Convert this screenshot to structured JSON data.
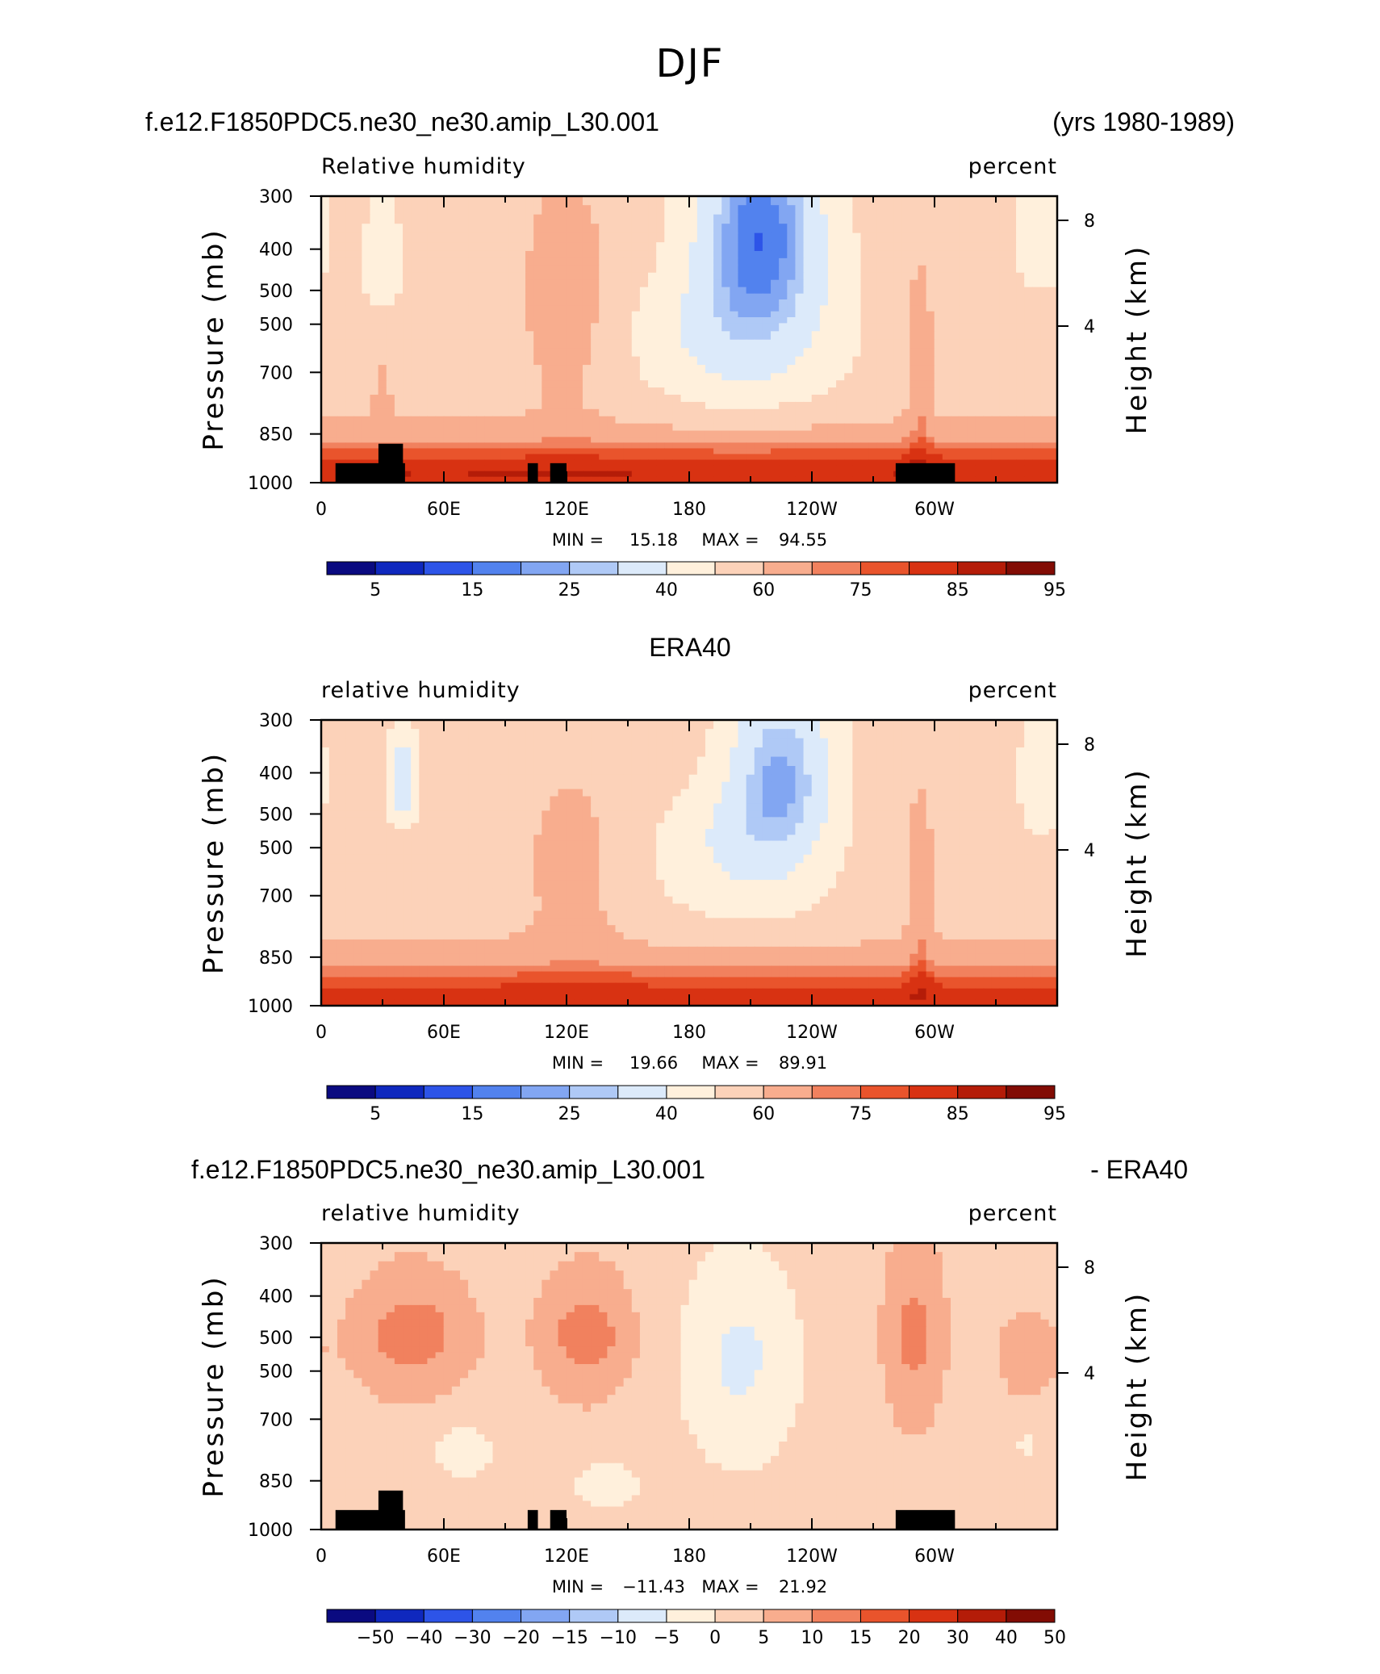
{
  "figure_title": "DJF",
  "colorbar_colors": [
    "#0a0a80",
    "#0f28be",
    "#2d54e8",
    "#5282ee",
    "#82a6f2",
    "#afc9f6",
    "#dceafa",
    "#fff0dc",
    "#fcd2b9",
    "#f8ad8e",
    "#f1815e",
    "#e9542c",
    "#d83212",
    "#b41c08",
    "#820c04"
  ],
  "land_color": "#000000",
  "chart_data": [
    {
      "type": "heatmap",
      "panel": "model",
      "title_left": "f.e12.F1850PDC5.ne30_ne30.amip_L30.001",
      "title_right": "(yrs 1980-1989)",
      "field_label": "Relative humidity",
      "units": "percent",
      "ylabel_left": "Pressure (mb)",
      "ylabel_right": "Height (km)",
      "x_ticks": [
        "0",
        "60E",
        "120E",
        "180",
        "120W",
        "60W"
      ],
      "x_tick_lons": [
        0,
        60,
        120,
        180,
        240,
        300
      ],
      "y_ticks": [
        "300",
        "400",
        "500",
        "500",
        "700",
        "850",
        "1000"
      ],
      "y_ticks_right": [
        "8",
        "4"
      ],
      "colorbar_labels": [
        "5",
        "15",
        "25",
        "40",
        "60",
        "75",
        "85",
        "95"
      ],
      "colorbar_levels": [
        5,
        10,
        15,
        20,
        25,
        30,
        40,
        50,
        60,
        70,
        75,
        80,
        85,
        90,
        95
      ],
      "stats": {
        "min_label": "MIN =",
        "min": "15.18",
        "max_label": "MAX =",
        "max": "94.55"
      }
    },
    {
      "type": "heatmap",
      "panel": "obs",
      "title_center": "ERA40",
      "field_label": "relative humidity",
      "units": "percent",
      "ylabel_left": "Pressure (mb)",
      "ylabel_right": "Height (km)",
      "x_ticks": [
        "0",
        "60E",
        "120E",
        "180",
        "120W",
        "60W"
      ],
      "x_tick_lons": [
        0,
        60,
        120,
        180,
        240,
        300
      ],
      "y_ticks": [
        "300",
        "400",
        "500",
        "500",
        "700",
        "850",
        "1000"
      ],
      "y_ticks_right": [
        "8",
        "4"
      ],
      "colorbar_labels": [
        "5",
        "15",
        "25",
        "40",
        "60",
        "75",
        "85",
        "95"
      ],
      "colorbar_levels": [
        5,
        10,
        15,
        20,
        25,
        30,
        40,
        50,
        60,
        70,
        75,
        80,
        85,
        90,
        95
      ],
      "stats": {
        "min_label": "MIN =",
        "min": "19.66",
        "max_label": "MAX =",
        "max": "89.91"
      }
    },
    {
      "type": "heatmap",
      "panel": "diff",
      "title_left": "f.e12.F1850PDC5.ne30_ne30.amip_L30.001",
      "title_right": "- ERA40",
      "field_label": "relative humidity",
      "units": "percent",
      "ylabel_left": "Pressure (mb)",
      "ylabel_right": "Height (km)",
      "x_ticks": [
        "0",
        "60E",
        "120E",
        "180",
        "120W",
        "60W"
      ],
      "x_tick_lons": [
        0,
        60,
        120,
        180,
        240,
        300
      ],
      "y_ticks": [
        "300",
        "400",
        "500",
        "500",
        "700",
        "850",
        "1000"
      ],
      "y_ticks_right": [
        "8",
        "4"
      ],
      "colorbar_labels": [
        "−50",
        "−40",
        "−30",
        "−20",
        "−15",
        "−10",
        "−5",
        "0",
        "5",
        "10",
        "15",
        "20",
        "30",
        "40",
        "50"
      ],
      "colorbar_levels": [
        -50,
        -40,
        -30,
        -20,
        -15,
        -10,
        -5,
        0,
        5,
        10,
        15,
        20,
        30,
        40,
        50
      ],
      "stats": {
        "min_label": "MIN =",
        "min": "−11.43",
        "max_label": "MAX =",
        "max": "21.92"
      }
    }
  ]
}
